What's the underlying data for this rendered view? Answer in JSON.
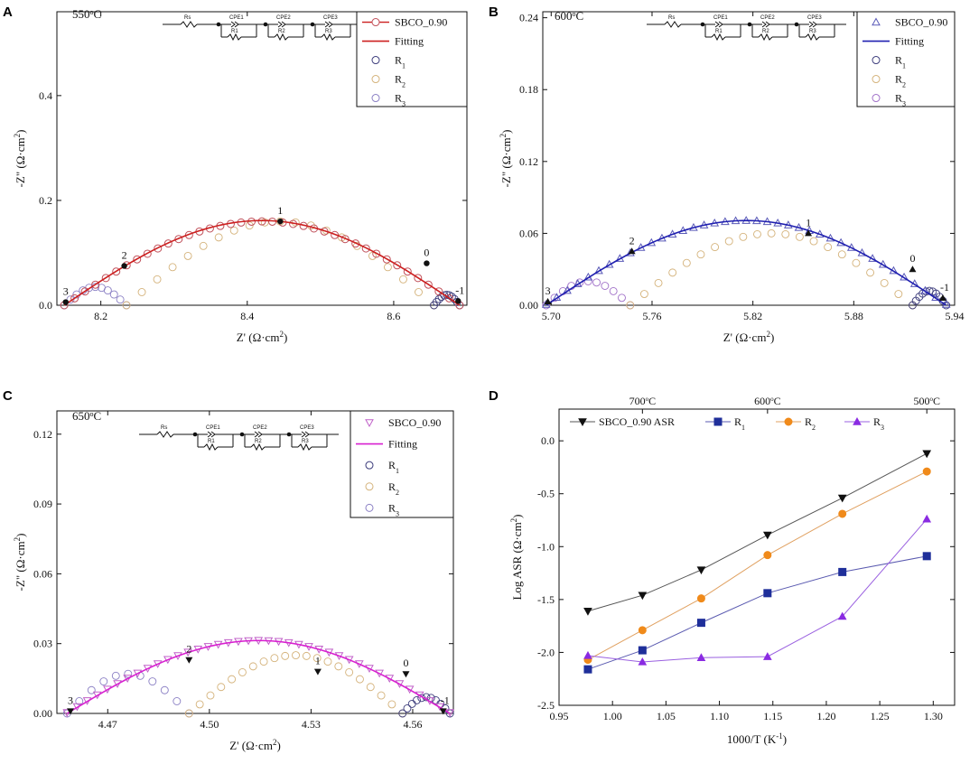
{
  "figure": {
    "panel_labels": [
      "A",
      "B",
      "C",
      "D"
    ],
    "circuit_labels": [
      "Rs",
      "CPE1",
      "CPE2",
      "CPE3",
      "R1",
      "R2",
      "R3"
    ]
  },
  "chart_data": [
    {
      "type": "scatter",
      "panel": "A",
      "temperature_label": "550°C",
      "xlabel": "Z' (Ω·cm²)",
      "ylabel": "-Z\" (Ω·cm²)",
      "xlim": [
        8.14,
        8.7
      ],
      "ylim": [
        0,
        0.56
      ],
      "xticks": [
        8.2,
        8.4,
        8.6
      ],
      "xtick_labels": [
        "8.2",
        "8.4",
        "8.6"
      ],
      "yticks": [
        0,
        0.2,
        0.4
      ],
      "ytick_labels": [
        "0.0",
        "0.2",
        "0.4"
      ],
      "legend": [
        "SBCO_0.90",
        "Fitting",
        "R1",
        "R2",
        "R3"
      ],
      "marker": "circle",
      "colors": {
        "data": "#c0505a",
        "fit": "#cc1f1f",
        "r1": "#3a3a7a",
        "r2": "#d4b27a",
        "r3": "#8a7fc4"
      },
      "arcs": {
        "data": {
          "start": 8.15,
          "end": 8.69,
          "peak": 0.16
        },
        "r3": {
          "start": 8.15,
          "end": 8.235,
          "peak": 0.035
        },
        "r2": {
          "start": 8.235,
          "end": 8.655,
          "peak": 0.16
        },
        "r1": {
          "start": 8.655,
          "end": 8.69,
          "peak": 0.02
        }
      },
      "annotations": [
        {
          "label": "3",
          "x": 8.152,
          "y": 0.006
        },
        {
          "label": "2",
          "x": 8.232,
          "y": 0.075
        },
        {
          "label": "1",
          "x": 8.445,
          "y": 0.16
        },
        {
          "label": "0",
          "x": 8.645,
          "y": 0.08
        },
        {
          "label": "-1",
          "x": 8.688,
          "y": 0.008
        }
      ]
    },
    {
      "type": "scatter",
      "panel": "B",
      "temperature_label": "600°C",
      "xlabel": "Z' (Ω·cm²)",
      "ylabel": "-Z\" (Ω·cm²)",
      "xlim": [
        5.695,
        5.94
      ],
      "ylim": [
        0,
        0.245
      ],
      "xticks": [
        5.7,
        5.76,
        5.82,
        5.88,
        5.94
      ],
      "xtick_labels": [
        "5.70",
        "5.76",
        "5.82",
        "5.88",
        "5.94"
      ],
      "yticks": [
        0,
        0.06,
        0.12,
        0.18,
        0.24
      ],
      "ytick_labels": [
        "0.00",
        "0.06",
        "0.12",
        "0.18",
        "0.24"
      ],
      "legend": [
        "SBCO_0.90",
        "Fitting",
        "R1",
        "R2",
        "R3"
      ],
      "marker": "triangle-up",
      "colors": {
        "data": "#5a5ab8",
        "fit": "#1f1fb0",
        "r1": "#3a3a7a",
        "r2": "#d4b27a",
        "r3": "#a070c8"
      },
      "arcs": {
        "data": {
          "start": 5.697,
          "end": 5.935,
          "peak": 0.07
        },
        "r3": {
          "start": 5.697,
          "end": 5.747,
          "peak": 0.02
        },
        "r2": {
          "start": 5.747,
          "end": 5.915,
          "peak": 0.06
        },
        "r1": {
          "start": 5.915,
          "end": 5.935,
          "peak": 0.012
        }
      },
      "annotations": [
        {
          "label": "3",
          "x": 5.698,
          "y": 0.003
        },
        {
          "label": "2",
          "x": 5.748,
          "y": 0.045
        },
        {
          "label": "1",
          "x": 5.853,
          "y": 0.06
        },
        {
          "label": "0",
          "x": 5.915,
          "y": 0.03
        },
        {
          "label": "-1",
          "x": 5.933,
          "y": 0.006
        }
      ]
    },
    {
      "type": "scatter",
      "panel": "C",
      "temperature_label": "650°C",
      "xlabel": "Z' (Ω·cm²)",
      "ylabel": "-Z\" (Ω·cm²)",
      "xlim": [
        4.455,
        4.572
      ],
      "ylim": [
        0,
        0.13
      ],
      "xticks": [
        4.47,
        4.5,
        4.53,
        4.56
      ],
      "xtick_labels": [
        "4.47",
        "4.50",
        "4.53",
        "4.56"
      ],
      "yticks": [
        0,
        0.03,
        0.06,
        0.09,
        0.12
      ],
      "ytick_labels": [
        "0.00",
        "0.03",
        "0.06",
        "0.09",
        "0.12"
      ],
      "legend": [
        "SBCO_0.90",
        "Fitting",
        "R1",
        "R2",
        "R3"
      ],
      "marker": "triangle-down",
      "colors": {
        "data": "#c060c8",
        "fit": "#d820d0",
        "r1": "#3a3a7a",
        "r2": "#d4b27a",
        "r3": "#8a7fc4"
      },
      "arcs": {
        "data": {
          "start": 4.458,
          "end": 4.571,
          "peak": 0.031
        },
        "r3": {
          "start": 4.458,
          "end": 4.494,
          "peak": 0.017
        },
        "r2": {
          "start": 4.494,
          "end": 4.557,
          "peak": 0.025
        },
        "r1": {
          "start": 4.557,
          "end": 4.571,
          "peak": 0.007
        }
      },
      "annotations": [
        {
          "label": "3",
          "x": 4.459,
          "y": 0.001
        },
        {
          "label": "2",
          "x": 4.494,
          "y": 0.023
        },
        {
          "label": "1",
          "x": 4.532,
          "y": 0.018
        },
        {
          "label": "0",
          "x": 4.558,
          "y": 0.017
        },
        {
          "label": "-1",
          "x": 4.569,
          "y": 0.001
        }
      ]
    },
    {
      "type": "line",
      "panel": "D",
      "xlabel": "1000/T (K⁻¹)",
      "ylabel": "Log ASR (Ω·cm²)",
      "xlim": [
        0.95,
        1.32
      ],
      "ylim": [
        -2.5,
        0.3
      ],
      "xticks": [
        0.95,
        1.0,
        1.05,
        1.1,
        1.15,
        1.2,
        1.25,
        1.3
      ],
      "xtick_labels": [
        "0.95",
        "1.00",
        "1.05",
        "1.10",
        "1.15",
        "1.20",
        "1.25",
        "1.30"
      ],
      "yticks": [
        -2.5,
        -2.0,
        -1.5,
        -1.0,
        -0.5,
        0.0
      ],
      "ytick_labels": [
        "-2.5",
        "-2.0",
        "-1.5",
        "-1.0",
        "-0.5",
        "0.0"
      ],
      "top_axis": [
        {
          "label": "700°C",
          "x": 1.028
        },
        {
          "label": "600°C",
          "x": 1.145
        },
        {
          "label": "500°C",
          "x": 1.294
        }
      ],
      "x": [
        0.977,
        1.028,
        1.083,
        1.145,
        1.215,
        1.294
      ],
      "series": [
        {
          "name": "SBCO_0.90 ASR",
          "marker": "triangle-down",
          "color": "#111111",
          "line": "#555555",
          "values": [
            -1.61,
            -1.46,
            -1.22,
            -0.89,
            -0.54,
            -0.12
          ]
        },
        {
          "name": "R1",
          "marker": "square",
          "color": "#1f2f9a",
          "line": "#5a5ab0",
          "values": [
            -2.16,
            -1.98,
            -1.72,
            -1.44,
            -1.24,
            -1.09
          ]
        },
        {
          "name": "R2",
          "marker": "circle",
          "color": "#f08a1a",
          "line": "#e0a060",
          "values": [
            -2.07,
            -1.79,
            -1.49,
            -1.08,
            -0.69,
            -0.29
          ]
        },
        {
          "name": "R3",
          "marker": "triangle-up",
          "color": "#8a2be2",
          "line": "#9a60e0",
          "values": [
            -2.03,
            -2.09,
            -2.05,
            -2.04,
            -1.66,
            -0.74
          ]
        }
      ]
    }
  ]
}
